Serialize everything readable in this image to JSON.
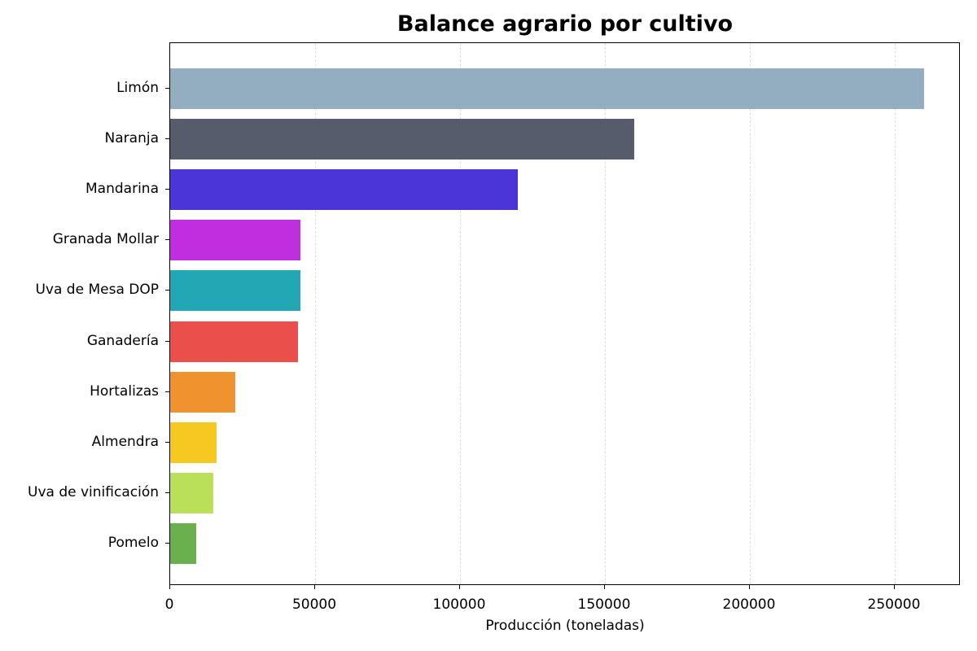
{
  "chart_data": {
    "type": "bar",
    "orientation": "horizontal",
    "title": "Balance agrario por cultivo",
    "xlabel": "Producción (toneladas)",
    "ylabel": "",
    "xlim": [
      0,
      272500
    ],
    "xticks": [
      0,
      50000,
      100000,
      150000,
      200000,
      250000
    ],
    "xtick_labels": [
      "0",
      "50000",
      "100000",
      "150000",
      "200000",
      "250000"
    ],
    "grid": {
      "x": true,
      "y": false,
      "style": "dashed"
    },
    "categories": [
      "Limón",
      "Naranja",
      "Mandarina",
      "Granada Mollar",
      "Uva de Mesa DOP",
      "Ganadería",
      "Hortalizas",
      "Almendra",
      "Uva de vinificación",
      "Pomelo"
    ],
    "values": [
      260000,
      160000,
      120000,
      45000,
      45000,
      44000,
      22500,
      16000,
      15000,
      9000
    ],
    "colors": [
      "#94aec1",
      "#565c6c",
      "#4b35d8",
      "#bf2fdf",
      "#22a8b4",
      "#ea4f4b",
      "#f0922e",
      "#f8c822",
      "#badf58",
      "#6ab04c"
    ]
  }
}
